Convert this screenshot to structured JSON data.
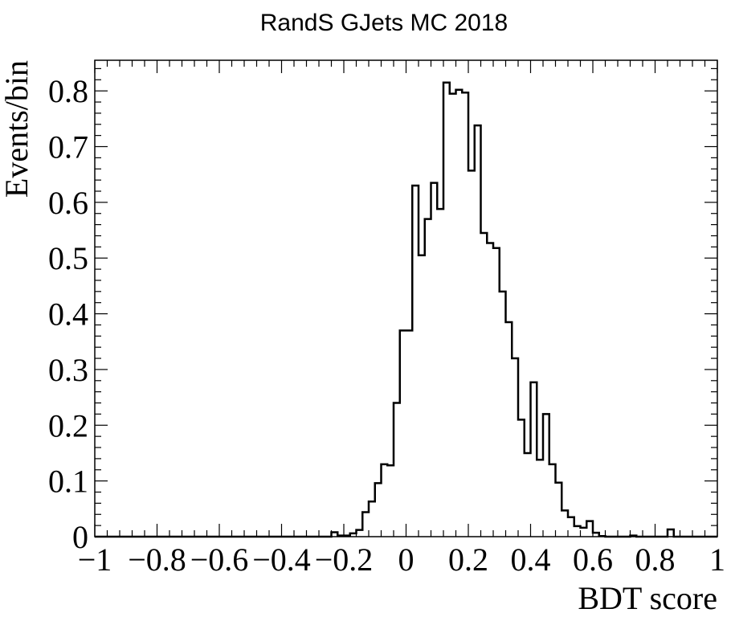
{
  "chart_data": {
    "type": "histogram",
    "title": "RandS GJets MC 2018",
    "xlabel": "BDT score",
    "ylabel": "Events/bin",
    "xlim": [
      -1,
      1
    ],
    "ylim": [
      0,
      0.855
    ],
    "grid": false,
    "x_ticks": [
      -1,
      -0.8,
      -0.6,
      -0.4,
      -0.2,
      0,
      0.2,
      0.4,
      0.6,
      0.8,
      1
    ],
    "x_tick_labels": [
      "−1",
      "−0.8",
      "−0.6",
      "−0.4",
      "−0.2",
      "0",
      "0.2",
      "0.4",
      "0.6",
      "0.8",
      "1"
    ],
    "y_ticks": [
      0,
      0.1,
      0.2,
      0.3,
      0.4,
      0.5,
      0.6,
      0.7,
      0.8
    ],
    "y_tick_labels": [
      "0",
      "0.1",
      "0.2",
      "0.3",
      "0.4",
      "0.5",
      "0.6",
      "0.7",
      "0.8"
    ],
    "bin_width": 0.02,
    "bin_edges_start": -1,
    "values": [
      0,
      0,
      0,
      0,
      0,
      0,
      0,
      0,
      0,
      0,
      0,
      0,
      0,
      0,
      0,
      0,
      0,
      0,
      0,
      0,
      0,
      0,
      0,
      0,
      0,
      0,
      0,
      0,
      0,
      0,
      0,
      0,
      0,
      0,
      0,
      0,
      0,
      0,
      0.008,
      0.002,
      0.002,
      0.006,
      0.012,
      0.044,
      0.063,
      0.096,
      0.13,
      0.128,
      0.24,
      0.37,
      0.37,
      0.63,
      0.505,
      0.57,
      0.635,
      0.588,
      0.815,
      0.795,
      0.802,
      0.797,
      0.657,
      0.738,
      0.545,
      0.527,
      0.518,
      0.44,
      0.385,
      0.32,
      0.21,
      0.15,
      0.277,
      0.138,
      0.22,
      0.13,
      0.097,
      0.047,
      0.035,
      0.019,
      0.016,
      0.028,
      0.007,
      0.001,
      0,
      0,
      0,
      0,
      0.002,
      0,
      0,
      0,
      0,
      0,
      0.013,
      0,
      0,
      0,
      0,
      0,
      0,
      0
    ]
  }
}
